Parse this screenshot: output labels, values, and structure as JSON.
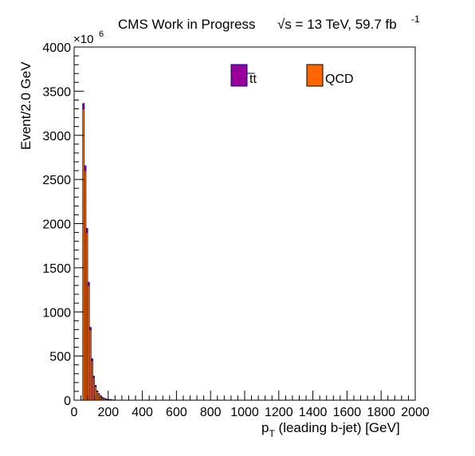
{
  "chart_data": {
    "type": "bar",
    "title": "CMS Work in Progress",
    "lumi_prefix": "√s = 13 TeV, 59.7 fb",
    "lumi_exp": "-1",
    "xlabel": "p",
    "xlabel_sub": "T",
    "xlabel_rest": " (leading b-jet) [GeV]",
    "ylabel": "Event/2.0 GeV",
    "y_multiplier": "×10",
    "y_multiplier_exp": "6",
    "xlim": [
      0,
      2000
    ],
    "ylim": [
      0,
      4000
    ],
    "bin_width": 2.0,
    "x_tick_labels": [
      "0",
      "200",
      "400",
      "600",
      "800",
      "1000",
      "1200",
      "1400",
      "1600",
      "1800",
      "2000"
    ],
    "y_tick_labels": [
      "0",
      "500",
      "1000",
      "1500",
      "2000",
      "2500",
      "3000",
      "3500",
      "4000"
    ],
    "series": [
      {
        "name": "t̅t",
        "color": "#990099",
        "edge": "#000099",
        "values_note": "stacked on QCD; visible as thin band on top",
        "x": [
          40,
          50,
          60,
          70,
          80,
          90,
          100,
          110,
          120,
          130,
          140,
          150,
          160,
          170,
          180,
          190,
          200,
          220,
          240,
          260,
          280,
          300
        ],
        "values": [
          0,
          60,
          55,
          45,
          35,
          25,
          18,
          12,
          8,
          6,
          4,
          3,
          2,
          2,
          1,
          1,
          1,
          0,
          0,
          0,
          0,
          0
        ]
      },
      {
        "name": "QCD",
        "color": "#ff6600",
        "edge": "#000000",
        "x": [
          40,
          50,
          60,
          70,
          80,
          90,
          100,
          110,
          120,
          130,
          140,
          150,
          160,
          170,
          180,
          190,
          200,
          220,
          240,
          260,
          280,
          300
        ],
        "values": [
          0,
          3300,
          2600,
          1900,
          1300,
          800,
          450,
          260,
          160,
          100,
          70,
          45,
          30,
          20,
          14,
          10,
          7,
          4,
          2,
          1,
          0,
          0
        ]
      }
    ],
    "legend_position": "top-center"
  }
}
